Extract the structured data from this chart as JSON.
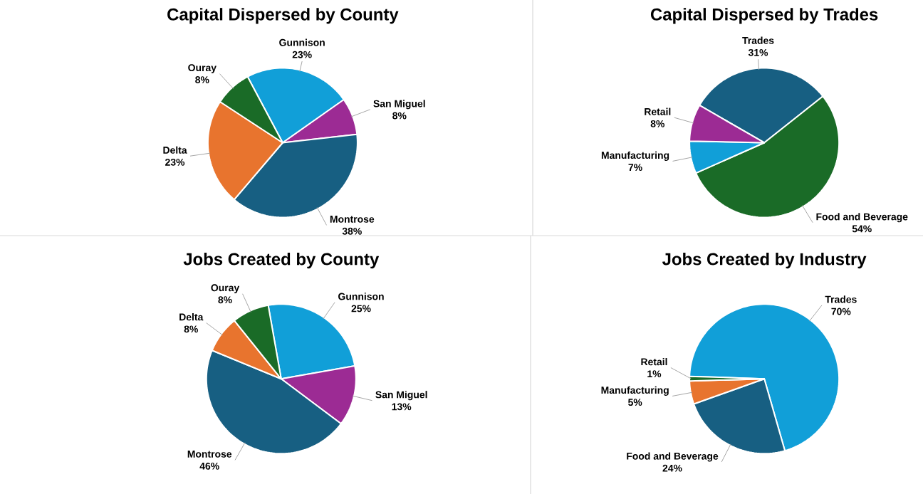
{
  "chart_data": [
    {
      "type": "pie",
      "title": "Capital Dispersed by County",
      "categories": [
        "Gunnison",
        "San Miguel",
        "Montrose",
        "Delta",
        "Ouray"
      ],
      "values": [
        23,
        8,
        38,
        23,
        8
      ],
      "value_labels": [
        "23%",
        "8%",
        "38%",
        "23%",
        "8%"
      ],
      "colors": [
        "#119fd8",
        "#9c2b94",
        "#175f82",
        "#e8742e",
        "#1a6b27"
      ]
    },
    {
      "type": "pie",
      "title": "Capital Dispersed by Trades",
      "categories": [
        "Trades",
        "Food and Beverage",
        "Manufacturing",
        "Retail"
      ],
      "values": [
        31,
        54,
        7,
        8
      ],
      "value_labels": [
        "31%",
        "54%",
        "7%",
        "8%"
      ],
      "colors": [
        "#175f82",
        "#1a6b27",
        "#119fd8",
        "#9c2b94"
      ]
    },
    {
      "type": "pie",
      "title": "Jobs Created by County",
      "categories": [
        "Gunnison",
        "San Miguel",
        "Montrose",
        "Delta",
        "Ouray"
      ],
      "values": [
        25,
        13,
        46,
        8,
        8
      ],
      "value_labels": [
        "25%",
        "13%",
        "46%",
        "8%",
        "8%"
      ],
      "colors": [
        "#119fd8",
        "#9c2b94",
        "#175f82",
        "#e8742e",
        "#1a6b27"
      ]
    },
    {
      "type": "pie",
      "title": "Jobs Created by Industry",
      "categories": [
        "Trades",
        "Food and Beverage",
        "Manufacturing",
        "Retail"
      ],
      "values": [
        70,
        24,
        5,
        1
      ],
      "value_labels": [
        "70%",
        "24%",
        "5%",
        "1%"
      ],
      "colors": [
        "#119fd8",
        "#175f82",
        "#e8742e",
        "#1a6b27"
      ]
    }
  ]
}
